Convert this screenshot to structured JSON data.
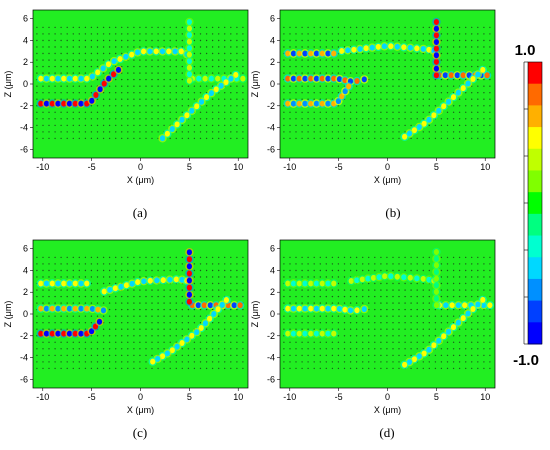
{
  "colorbar": {
    "max_label": "1.0",
    "min_label": "-1.0",
    "colors": [
      "#ff0000",
      "#ff6a00",
      "#ffb000",
      "#ffff00",
      "#c0ff00",
      "#80ff00",
      "#00ff00",
      "#00ff80",
      "#00ffd0",
      "#00d8ff",
      "#0090ff",
      "#0040ff",
      "#0000ff"
    ]
  },
  "background_color": "#22ee22",
  "panels": [
    {
      "caption": "(a)",
      "xlabel": "X (μm)",
      "ylabel": "Z (μm)"
    },
    {
      "caption": "(b)",
      "xlabel": "X (μm)",
      "ylabel": "Z (μm)"
    },
    {
      "caption": "(c)",
      "xlabel": "X (μm)",
      "ylabel": "Z (μm)"
    },
    {
      "caption": "(d)",
      "xlabel": "X (μm)",
      "ylabel": "Z (μm)"
    }
  ],
  "chart_data": [
    {
      "type": "heatmap",
      "panel": "(a)",
      "xlabel": "X (μm)",
      "ylabel": "Z (μm)",
      "xlim": [
        -11,
        11
      ],
      "ylim": [
        -6.8,
        6.8
      ],
      "xticks": [
        -10,
        -5,
        0,
        5,
        10
      ],
      "yticks": [
        -6,
        -4,
        -2,
        0,
        2,
        4,
        6
      ],
      "value_range": [
        -1.0,
        1.0
      ],
      "waveguides": [
        {
          "path": [
            [
              -10.5,
              0.5
            ],
            [
              -5.2,
              0.5
            ],
            [
              -3,
              2
            ],
            [
              0,
              3
            ],
            [
              4.5,
              3
            ],
            [
              5,
              2.5
            ]
          ],
          "intensity": 0.45
        },
        {
          "path": [
            [
              -10.5,
              -1.8
            ],
            [
              -5.2,
              -1.8
            ],
            [
              -3.5,
              0.3
            ],
            [
              -2,
              1.5
            ]
          ],
          "intensity": 1.0
        },
        {
          "path": [
            [
              5,
              0.5
            ],
            [
              10.8,
              0.5
            ]
          ],
          "intensity": 0.3
        },
        {
          "path": [
            [
              5,
              0
            ],
            [
              5,
              6
            ]
          ],
          "intensity": 0.3
        },
        {
          "path": [
            [
              10,
              1
            ],
            [
              7,
              -1
            ],
            [
              4,
              -3.5
            ],
            [
              2,
              -5.2
            ]
          ],
          "intensity": 0.45
        }
      ]
    },
    {
      "type": "heatmap",
      "panel": "(b)",
      "xlabel": "X (μm)",
      "ylabel": "Z (μm)",
      "xlim": [
        -11,
        11
      ],
      "ylim": [
        -6.8,
        6.8
      ],
      "xticks": [
        -10,
        -5,
        0,
        5,
        10
      ],
      "yticks": [
        -6,
        -4,
        -2,
        0,
        2,
        4,
        6
      ],
      "value_range": [
        -1.0,
        1.0
      ],
      "waveguides": [
        {
          "path": [
            [
              -10.5,
              2.8
            ],
            [
              -5.2,
              2.8
            ]
          ],
          "intensity": 0.75
        },
        {
          "path": [
            [
              -10.5,
              0.5
            ],
            [
              -5.2,
              0.5
            ],
            [
              -3.5,
              0.2
            ],
            [
              -2,
              0.5
            ]
          ],
          "intensity": 0.9
        },
        {
          "path": [
            [
              -10.5,
              -1.8
            ],
            [
              -5.2,
              -1.8
            ],
            [
              -3.8,
              0
            ]
          ],
          "intensity": 0.7
        },
        {
          "path": [
            [
              -5,
              3
            ],
            [
              0,
              3.5
            ],
            [
              4,
              3.2
            ],
            [
              5,
              3
            ]
          ],
          "intensity": 0.55
        },
        {
          "path": [
            [
              5,
              0.8
            ],
            [
              10.5,
              0.8
            ]
          ],
          "intensity": 0.85
        },
        {
          "path": [
            [
              5,
              0.5
            ],
            [
              5,
              6
            ]
          ],
          "intensity": 1.0
        },
        {
          "path": [
            [
              10,
              1.5
            ],
            [
              7,
              -1
            ],
            [
              4,
              -3.5
            ],
            [
              1.5,
              -5
            ]
          ],
          "intensity": 0.55
        }
      ]
    },
    {
      "type": "heatmap",
      "panel": "(c)",
      "xlabel": "X (μm)",
      "ylabel": "Z (μm)",
      "xlim": [
        -11,
        11
      ],
      "ylim": [
        -6.8,
        6.8
      ],
      "xticks": [
        -10,
        -5,
        0,
        5,
        10
      ],
      "yticks": [
        -6,
        -4,
        -2,
        0,
        2,
        4,
        6
      ],
      "value_range": [
        -1.0,
        1.0
      ],
      "waveguides": [
        {
          "path": [
            [
              -10.5,
              2.8
            ],
            [
              -5.2,
              2.8
            ]
          ],
          "intensity": 0.5
        },
        {
          "path": [
            [
              -10.5,
              0.5
            ],
            [
              -5.2,
              0.5
            ],
            [
              -3.5,
              0.3
            ]
          ],
          "intensity": 0.6
        },
        {
          "path": [
            [
              -10.5,
              -1.8
            ],
            [
              -5.2,
              -1.8
            ],
            [
              -4,
              -0.5
            ]
          ],
          "intensity": 1.0
        },
        {
          "path": [
            [
              -4,
              2
            ],
            [
              0,
              3
            ],
            [
              4,
              3.2
            ],
            [
              5,
              3
            ]
          ],
          "intensity": 0.5
        },
        {
          "path": [
            [
              5,
              0.8
            ],
            [
              10.5,
              0.8
            ]
          ],
          "intensity": 0.85
        },
        {
          "path": [
            [
              5,
              0.8
            ],
            [
              5,
              6
            ]
          ],
          "intensity": 1.0
        },
        {
          "path": [
            [
              9,
              1.5
            ],
            [
              6,
              -1.5
            ],
            [
              3,
              -3.5
            ],
            [
              1,
              -4.5
            ]
          ],
          "intensity": 0.45
        }
      ]
    },
    {
      "type": "heatmap",
      "panel": "(d)",
      "xlabel": "X (μm)",
      "ylabel": "Z (μm)",
      "xlim": [
        -11,
        11
      ],
      "ylim": [
        -6.8,
        6.8
      ],
      "xticks": [
        -10,
        -5,
        0,
        5,
        10
      ],
      "yticks": [
        -6,
        -4,
        -2,
        0,
        2,
        4,
        6
      ],
      "value_range": [
        -1.0,
        1.0
      ],
      "waveguides": [
        {
          "path": [
            [
              -10.5,
              2.8
            ],
            [
              -5.2,
              2.8
            ]
          ],
          "intensity": 0.3
        },
        {
          "path": [
            [
              -10.5,
              0.5
            ],
            [
              -5.2,
              0.5
            ],
            [
              -3.5,
              0.3
            ],
            [
              -2,
              0.5
            ]
          ],
          "intensity": 0.45
        },
        {
          "path": [
            [
              -10.5,
              -1.8
            ],
            [
              -5.2,
              -1.8
            ]
          ],
          "intensity": 0.3
        },
        {
          "path": [
            [
              -4,
              3
            ],
            [
              0,
              3.5
            ],
            [
              4,
              3.2
            ],
            [
              5,
              3
            ]
          ],
          "intensity": 0.3
        },
        {
          "path": [
            [
              5,
              0.8
            ],
            [
              10.8,
              0.8
            ]
          ],
          "intensity": 0.45
        },
        {
          "path": [
            [
              5,
              0.5
            ],
            [
              5,
              6
            ]
          ],
          "intensity": 0.15
        },
        {
          "path": [
            [
              10,
              1.5
            ],
            [
              7,
              -1
            ],
            [
              4,
              -3.5
            ],
            [
              1.5,
              -4.8
            ]
          ],
          "intensity": 0.55
        }
      ]
    }
  ]
}
